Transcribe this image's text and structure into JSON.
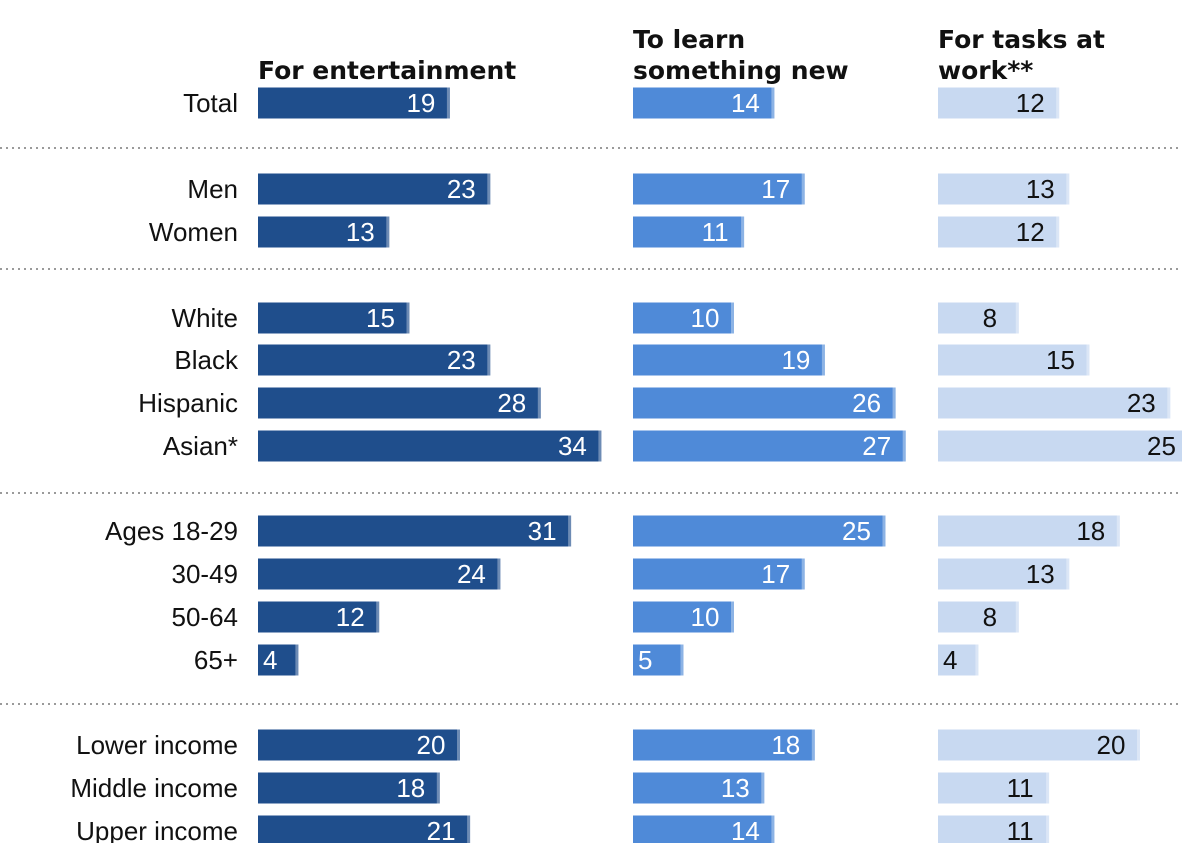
{
  "chart_data": {
    "type": "bar",
    "orientation": "horizontal",
    "layout": "small-multiples",
    "grid": false,
    "legend": "none",
    "colors": {
      "For entertainment": "#1f4e8c",
      "To learn something new": "#4f8ad8",
      "For tasks at work**": "#c8d9f1",
      "separator": "#9a9a9a"
    },
    "series_headers": [
      [
        "For entertainment"
      ],
      [
        "To learn",
        "something new"
      ],
      [
        "For tasks at",
        "work**"
      ]
    ],
    "categories": [
      "Total",
      "Men",
      "Women",
      "White",
      "Black",
      "Hispanic",
      "Asian*",
      "Ages 18-29",
      "30-49",
      "50-64",
      "65+",
      "Lower income",
      "Middle income",
      "Upper income"
    ],
    "groups": [
      [
        "Total"
      ],
      [
        "Men",
        "Women"
      ],
      [
        "White",
        "Black",
        "Hispanic",
        "Asian*"
      ],
      [
        "Ages 18-29",
        "30-49",
        "50-64",
        "65+"
      ],
      [
        "Lower income",
        "Middle income",
        "Upper income"
      ]
    ],
    "series": [
      {
        "name": "For entertainment",
        "values": [
          19,
          23,
          13,
          15,
          23,
          28,
          34,
          31,
          24,
          12,
          4,
          20,
          18,
          21
        ]
      },
      {
        "name": "To learn something new",
        "values": [
          14,
          17,
          11,
          10,
          19,
          26,
          27,
          25,
          17,
          10,
          5,
          18,
          13,
          14
        ]
      },
      {
        "name": "For tasks at work**",
        "values": [
          12,
          13,
          12,
          8,
          15,
          23,
          25,
          18,
          13,
          8,
          4,
          20,
          11,
          11
        ]
      }
    ],
    "xlim": [
      0,
      34
    ]
  }
}
